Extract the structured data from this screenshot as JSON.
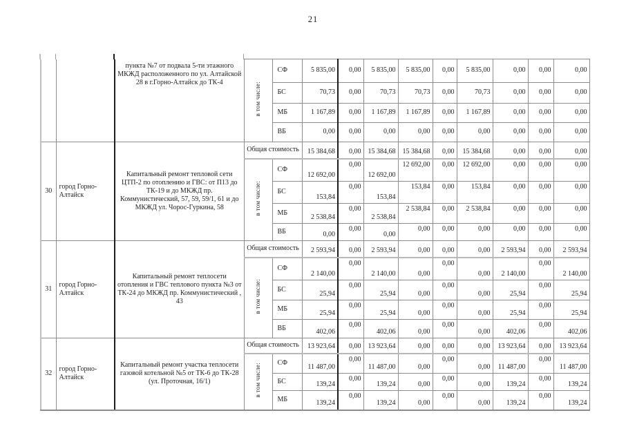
{
  "page": {
    "number": "21"
  },
  "table": {
    "total_label": "Общая стоимость",
    "in_total_label": "в том числе:",
    "blocks": [
      {
        "num": "",
        "city": "",
        "description": "пункта №7 от подвала 5-ти этажного МКЖД расположенного по ул. Алтайской 28 в г.Горно-Алтайск до ТК-4",
        "rows": [
          {
            "label": "СФ",
            "values": [
              "5 835,00",
              "0,00",
              "5 835,00",
              "5 835,00",
              "0,00",
              "5 835,00",
              "0,00",
              "0,00",
              "0,00"
            ]
          },
          {
            "label": "БС",
            "values": [
              "70,73",
              "0,00",
              "70,73",
              "70,73",
              "0,00",
              "70,73",
              "0,00",
              "0,00",
              "0,00"
            ]
          },
          {
            "label": "МБ",
            "values": [
              "1 167,89",
              "0,00",
              "1 167,89",
              "1 167,89",
              "0,00",
              "1 167,89",
              "0,00",
              "0,00",
              "0,00"
            ]
          },
          {
            "label": "ВБ",
            "values": [
              "0,00",
              "0,00",
              "0,00",
              "0,00",
              "0,00",
              "0,00",
              "0,00",
              "0,00",
              "0,00"
            ]
          }
        ]
      },
      {
        "num": "30",
        "city": "город Горно-Алтайск",
        "description": "Капитальный ремонт тепловой сети ЦТП-2 по отоплению и ГВС: от П13 до ТК-19 и до МКЖД пр. Коммунистический, 57, 59, 59/1, 61 и до МКЖД ул. Чорос-Гуркина, 58",
        "total_values": [
          "15 384,68",
          "0,00",
          "15 384,68",
          "15 384,68",
          "0,00",
          "15 384,68",
          "0,00",
          "0,00",
          "0,00"
        ],
        "rows": [
          {
            "label": "СФ",
            "values": [
              "12 692,00",
              "0,00",
              "12 692,00",
              "12 692,00",
              "0,00",
              "12 692,00",
              "0,00",
              "0,00",
              "0,00"
            ]
          },
          {
            "label": "БС",
            "values": [
              "153,84",
              "0,00",
              "153,84",
              "153,84",
              "0,00",
              "153,84",
              "0,00",
              "0,00",
              "0,00"
            ]
          },
          {
            "label": "МБ",
            "values": [
              "2 538,84",
              "0,00",
              "2 538,84",
              "2 538,84",
              "0,00",
              "2 538,84",
              "0,00",
              "0,00",
              "0,00"
            ]
          },
          {
            "label": "ВБ",
            "values": [
              "0,00",
              "0,00",
              "0,00",
              "0,00",
              "0,00",
              "0,00",
              "0,00",
              "0,00",
              "0,00"
            ]
          }
        ]
      },
      {
        "num": "31",
        "city": "город Горно-Алтайск",
        "description": "Капитальный ремонт теплосети отопления и ГВС теплового пункта №3 от ТК-24 до МКЖД пр. Коммунистический , 43",
        "total_values": [
          "2 593,94",
          "0,00",
          "2 593,94",
          "0,00",
          "0,00",
          "0,00",
          "2 593,94",
          "0,00",
          "2 593,94"
        ],
        "rows": [
          {
            "label": "СФ",
            "values": [
              "2 140,00",
              "0,00",
              "2 140,00",
              "0,00",
              "0,00",
              "0,00",
              "2 140,00",
              "0,00",
              "2 140,00"
            ]
          },
          {
            "label": "БС",
            "values": [
              "25,94",
              "0,00",
              "25,94",
              "0,00",
              "0,00",
              "0,00",
              "25,94",
              "0,00",
              "25,94"
            ]
          },
          {
            "label": "МБ",
            "values": [
              "25,94",
              "0,00",
              "25,94",
              "0,00",
              "0,00",
              "0,00",
              "25,94",
              "0,00",
              "25,94"
            ]
          },
          {
            "label": "ВБ",
            "values": [
              "402,06",
              "0,00",
              "402,06",
              "0,00",
              "0,00",
              "0,00",
              "402,06",
              "0,00",
              "402,06"
            ]
          }
        ]
      },
      {
        "num": "32",
        "city": "город Горно-Алтайск",
        "description": "Капитальный ремонт участка теплосети газовой котельной №5 от ТК-6 до ТК-28 (ул. Проточная, 16/1)",
        "total_values": [
          "13 923,64",
          "0,00",
          "13 923,64",
          "0,00",
          "0,00",
          "0,00",
          "13 923,64",
          "0,00",
          "13 923,64"
        ],
        "rows": [
          {
            "label": "СФ",
            "values": [
              "11 487,00",
              "0,00",
              "11 487,00",
              "0,00",
              "0,00",
              "0,00",
              "11 487,00",
              "0,00",
              "11 487,00"
            ]
          },
          {
            "label": "БС",
            "values": [
              "139,24",
              "0,00",
              "139,24",
              "0,00",
              "0,00",
              "0,00",
              "139,24",
              "0,00",
              "139,24"
            ]
          },
          {
            "label": "МБ",
            "values": [
              "139,24",
              "0,00",
              "139,24",
              "0,00",
              "0,00",
              "0,00",
              "139,24",
              "0,00",
              "139,24"
            ]
          }
        ]
      }
    ]
  }
}
